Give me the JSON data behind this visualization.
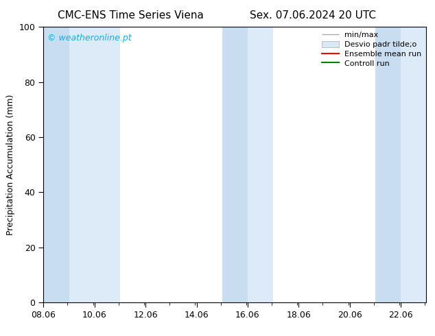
{
  "title_left": "CMC-ENS Time Series Viena",
  "title_right": "Sex. 07.06.2024 20 UTC",
  "ylabel": "Precipitation Accumulation (mm)",
  "watermark": "© weatheronline.pt",
  "watermark_color": "#1ca7ec",
  "xlim_left": 8.06,
  "xlim_right": 23.06,
  "ylim_bottom": 0,
  "ylim_top": 100,
  "xticks": [
    8.06,
    10.06,
    12.06,
    14.06,
    16.06,
    18.06,
    20.06,
    22.06
  ],
  "yticks": [
    0,
    20,
    40,
    60,
    80,
    100
  ],
  "shaded_bands": [
    {
      "xmin": 8.06,
      "xmax": 9.06,
      "shade": 0
    },
    {
      "xmin": 9.06,
      "xmax": 11.06,
      "shade": 1
    },
    {
      "xmin": 15.06,
      "xmax": 16.06,
      "shade": 0
    },
    {
      "xmin": 16.06,
      "xmax": 17.06,
      "shade": 1
    },
    {
      "xmin": 21.06,
      "xmax": 22.06,
      "shade": 0
    },
    {
      "xmin": 22.06,
      "xmax": 23.06,
      "shade": 1
    }
  ],
  "band_colors": [
    "#c8ddf0",
    "#ddeaf8"
  ],
  "legend_labels": [
    "min/max",
    "Desvio padr tilde;o",
    "Ensemble mean run",
    "Controll run"
  ],
  "legend_colors_line": [
    "#aaaaaa",
    "#cccccc",
    "#ff0000",
    "#008000"
  ],
  "bg_color": "#ffffff",
  "title_fontsize": 11,
  "tick_fontsize": 9,
  "ylabel_fontsize": 9
}
